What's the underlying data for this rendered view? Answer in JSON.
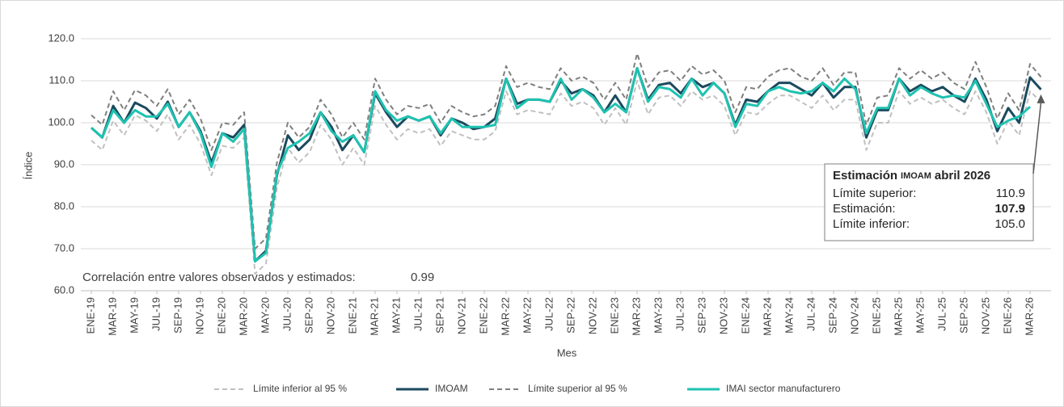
{
  "chart_data": {
    "type": "line",
    "xlabel": "Mes",
    "ylabel": "Índice",
    "categories": [
      "ENE-19",
      null,
      "MAR-19",
      null,
      "MAY-19",
      null,
      "JUL-19",
      null,
      "SEP-19",
      null,
      "NOV-19",
      null,
      "ENE-20",
      null,
      "MAR-20",
      null,
      "MAY-20",
      null,
      "JUL-20",
      null,
      "SEP-20",
      null,
      "NOV-20",
      null,
      "ENE-21",
      null,
      "MAR-21",
      null,
      "MAY-21",
      null,
      "JUL-21",
      null,
      "SEP-21",
      null,
      "NOV-21",
      null,
      "ENE-22",
      null,
      "MAR-22",
      null,
      "MAY-22",
      null,
      "JUL-22",
      null,
      "SEP-22",
      null,
      "NOV-22",
      null,
      "ENE-23",
      null,
      "MAR-23",
      null,
      "MAY-23",
      null,
      "JUL-23",
      null,
      "SEP-23",
      null,
      "NOV-23",
      null,
      "ENE-24",
      null,
      "MAR-24",
      null,
      "MAY-24",
      null,
      "JUL-24",
      null,
      "SEP-24",
      null,
      "NOV-24",
      null,
      "ENE-25",
      null,
      "MAR-25",
      null,
      "MAY-25",
      null,
      "JUL-25",
      null,
      "SEP-25",
      null,
      "NOV-25",
      null,
      "ENE-26",
      null,
      "MAR-26",
      null
    ],
    "series": [
      {
        "name": "Límite inferior al 95 %",
        "color": "#c0c0c0",
        "dash": true,
        "width": 2,
        "values": [
          95.8,
          93.5,
          100.5,
          97,
          101.8,
          100.5,
          98,
          102,
          96,
          99.5,
          95,
          87.5,
          94.5,
          94,
          96.5,
          64,
          66.5,
          84.5,
          94,
          90.5,
          93,
          99.5,
          96,
          90,
          94,
          90,
          104,
          99.5,
          96,
          98.5,
          97.5,
          98.5,
          94.5,
          98,
          97,
          96,
          96,
          98,
          107.5,
          102,
          103,
          102.5,
          102,
          107,
          104,
          105,
          103.5,
          99.5,
          103.5,
          99.5,
          110,
          102,
          106,
          106.5,
          104,
          107.5,
          105.5,
          106.5,
          104,
          97,
          102.5,
          102,
          104.5,
          106.5,
          106.5,
          105,
          103.5,
          106.5,
          103,
          105.5,
          105.5,
          93.5,
          100,
          100,
          107.5,
          104.5,
          106,
          104.5,
          105.5,
          103.5,
          102,
          107.5,
          102.5,
          95,
          100.5,
          97,
          107.5,
          105
        ]
      },
      {
        "name": "IMOAM",
        "color": "#1b4a5e",
        "dash": false,
        "width": 3,
        "values": [
          98.8,
          96.5,
          104,
          100,
          104.8,
          103.5,
          101,
          105,
          99,
          102.5,
          98,
          90.5,
          97.5,
          96.5,
          99.5,
          67,
          69.5,
          87.5,
          97,
          93.5,
          96,
          102.5,
          99,
          93.5,
          97,
          93,
          107,
          102.5,
          99,
          101.5,
          100.5,
          101.5,
          97,
          101,
          100,
          98.5,
          99,
          101,
          110.5,
          104.5,
          105.5,
          105.5,
          105,
          110,
          107,
          108,
          106.5,
          102.5,
          106.5,
          102.5,
          113,
          105.5,
          109,
          109.5,
          107,
          110.5,
          108.5,
          109.5,
          107,
          99.5,
          105.5,
          105,
          107.5,
          109.5,
          109.5,
          108,
          106.5,
          109.5,
          106,
          108.5,
          108.5,
          96.5,
          103,
          103,
          110.5,
          107.5,
          109,
          107.5,
          108.5,
          106.5,
          105,
          110.5,
          105.5,
          98,
          103.5,
          100,
          110.8,
          107.9
        ]
      },
      {
        "name": "Límite superior al 95 %",
        "color": "#7f7f7f",
        "dash": true,
        "width": 2,
        "values": [
          101.8,
          99.5,
          107.5,
          103,
          107.8,
          106.5,
          104,
          108,
          102,
          105.5,
          101,
          93.5,
          100,
          99.5,
          102.5,
          70,
          72.5,
          90.5,
          100,
          96.5,
          99,
          105.5,
          102,
          96.5,
          100,
          96,
          110.5,
          105.5,
          102,
          104,
          103.5,
          104.5,
          100,
          104,
          102.5,
          101.5,
          102,
          104,
          113.5,
          108.5,
          109.5,
          108.5,
          108,
          113,
          110,
          111,
          109.5,
          105.5,
          109.5,
          105.5,
          116.5,
          108.5,
          112,
          112.5,
          110,
          113.5,
          111.5,
          112.5,
          110,
          102.5,
          108.5,
          108,
          111,
          112.5,
          113,
          111,
          110,
          113,
          109,
          112,
          112,
          99.5,
          106,
          106.5,
          113,
          110.5,
          112.5,
          110.5,
          112,
          109.5,
          108,
          114.5,
          108.5,
          101,
          107,
          103,
          114,
          110.9
        ]
      },
      {
        "name": "IMAI sector manufacturero",
        "color": "#1fc2b0",
        "dash": false,
        "width": 3,
        "values": [
          98.8,
          96.5,
          103,
          100,
          103,
          101.5,
          101.5,
          104.5,
          99,
          102.5,
          97.5,
          89.5,
          97.5,
          95.5,
          98.5,
          67,
          69,
          88,
          94,
          95.5,
          97.5,
          102.5,
          98,
          95.5,
          97,
          93,
          107.5,
          103,
          100.5,
          101.5,
          100.5,
          101.5,
          97.5,
          101,
          99,
          99,
          99,
          99.5,
          110.5,
          103.5,
          105.5,
          105.5,
          105,
          110.5,
          105.5,
          108,
          106,
          102.5,
          104.5,
          102.5,
          113,
          105,
          108.5,
          108,
          106,
          110.5,
          106.5,
          109.5,
          107,
          99,
          104.5,
          104,
          107.5,
          108.5,
          107.5,
          107,
          107.5,
          109.5,
          107.5,
          110.5,
          108,
          97.5,
          103.5,
          103.5,
          110.5,
          106.5,
          108.5,
          107,
          106,
          106.5,
          106,
          110,
          104.5,
          99,
          100.5,
          101.5,
          103.8,
          null
        ]
      }
    ],
    "ylim": [
      60,
      120
    ],
    "yticks": [
      {
        "value": 60,
        "label": "60.0"
      },
      {
        "value": 70,
        "label": "70.0"
      },
      {
        "value": 80,
        "label": "80.0"
      },
      {
        "value": 90,
        "label": "90.0"
      },
      {
        "value": 100,
        "label": "100.0"
      },
      {
        "value": 110,
        "label": "110.0"
      },
      {
        "value": 120,
        "label": "120.0"
      }
    ],
    "grid": true,
    "annotation": {
      "title_start": "Estimación",
      "title_small": "IMOAM",
      "title_end": "abril 2026",
      "rows": [
        {
          "label": "Límite superior:",
          "value": "110.9"
        },
        {
          "label": "Estimación:",
          "value": "107.9"
        },
        {
          "label": "Límite inferior:",
          "value": "105.0"
        }
      ]
    },
    "correlation": {
      "label": "Correlación entre valores observados y estimados:",
      "value": "0.99"
    }
  }
}
